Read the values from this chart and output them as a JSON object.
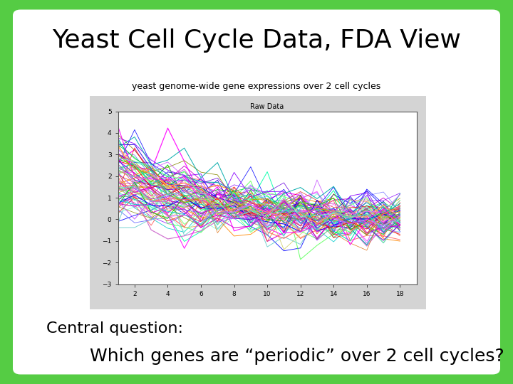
{
  "title": "Yeast Cell Cycle Data, FDA View",
  "subtitle": "yeast genome-wide gene expressions over 2 cell cycles",
  "inner_title": "Raw Data",
  "xlabel_ticks": [
    2,
    4,
    6,
    8,
    10,
    12,
    14,
    16,
    18
  ],
  "ylim": [
    -3,
    5
  ],
  "xlim": [
    1,
    19
  ],
  "yticks": [
    -3,
    -2,
    -1,
    0,
    1,
    2,
    3,
    4,
    5
  ],
  "central_question_line1": "Central question:",
  "central_question_line2": "Which genes are “periodic” over 2 cell cycles?",
  "bg_color_outer": "#55cc44",
  "plot_bg_gray": "#d4d4d4",
  "plot_axes_bg": "#ffffff",
  "n_genes": 80,
  "n_timepoints": 18,
  "seed": 42,
  "title_fontsize": 26,
  "subtitle_fontsize": 9,
  "inner_title_fontsize": 7,
  "question_fontsize1": 16,
  "question_fontsize2": 18,
  "line_colors": [
    "#ff0000",
    "#00cc00",
    "#0000ff",
    "#ff8800",
    "#cc00cc",
    "#00cccc",
    "#aaaa00",
    "#ff00ff",
    "#00ffaa",
    "#8800ff",
    "#ff6666",
    "#66ff66",
    "#6666ff",
    "#ffaa66",
    "#cc66cc",
    "#66cccc",
    "#cccc66",
    "#ff66ff",
    "#66ffcc",
    "#cc66ff",
    "#dd2200",
    "#00dd44",
    "#2200dd",
    "#dd6600",
    "#aa00aa",
    "#00aaaa",
    "#888800",
    "#dd00dd",
    "#00ddaa",
    "#6600dd"
  ]
}
